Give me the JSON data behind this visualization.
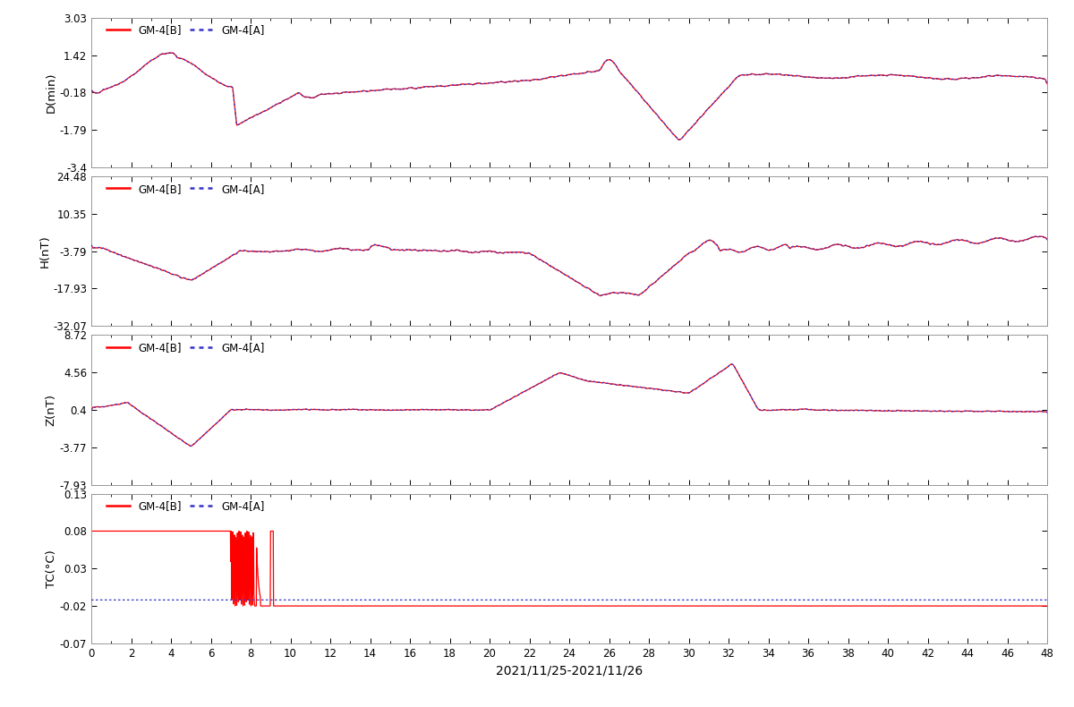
{
  "title": "2021/11/25-2021/11/26",
  "xlim": [
    0,
    48
  ],
  "xticks": [
    0,
    2,
    4,
    6,
    8,
    10,
    12,
    14,
    16,
    18,
    20,
    22,
    24,
    26,
    28,
    30,
    32,
    34,
    36,
    38,
    40,
    42,
    44,
    46,
    48
  ],
  "subplot1": {
    "ylabel": "D(min)",
    "ylim": [
      -3.4,
      3.03
    ],
    "yticks": [
      3.03,
      1.42,
      -0.18,
      -1.79,
      -3.4
    ]
  },
  "subplot2": {
    "ylabel": "H(nT)",
    "ylim": [
      -32.07,
      24.48
    ],
    "yticks": [
      24.48,
      10.35,
      -3.79,
      -17.93,
      -32.07
    ]
  },
  "subplot3": {
    "ylabel": "Z(nT)",
    "ylim": [
      -7.93,
      8.72
    ],
    "yticks": [
      8.72,
      4.56,
      0.4,
      -3.77,
      -7.93
    ]
  },
  "subplot4": {
    "ylabel": "TC(°C)",
    "ylim": [
      -0.07,
      0.13
    ],
    "yticks": [
      0.13,
      0.08,
      0.03,
      -0.02,
      -0.07
    ]
  },
  "legend_B": "GM-4[B]",
  "legend_A": "GM-4[A]",
  "color_B": "#FF0000",
  "color_A": "#3333CC",
  "lw_B": 0.9,
  "lw_A": 0.9,
  "n_points": 2880
}
